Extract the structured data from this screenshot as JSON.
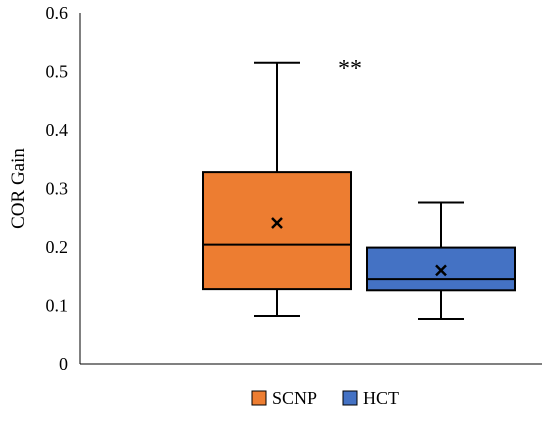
{
  "chart_data": {
    "type": "box",
    "ylabel": "COR Gain",
    "ylim": [
      0,
      0.6
    ],
    "yticks": [
      "0",
      "0.1",
      "0.2",
      "0.3",
      "0.4",
      "0.5",
      "0.6"
    ],
    "annotation": "**",
    "legend_position": "bottom",
    "series": [
      {
        "name": "SCNP",
        "color": "#ED7D31",
        "min": 0.082,
        "q1": 0.128,
        "median": 0.204,
        "q3": 0.328,
        "max": 0.515,
        "mean": 0.241
      },
      {
        "name": "HCT",
        "color": "#4472C4",
        "min": 0.077,
        "q1": 0.126,
        "median": 0.145,
        "q3": 0.199,
        "max": 0.276,
        "mean": 0.16
      }
    ]
  }
}
